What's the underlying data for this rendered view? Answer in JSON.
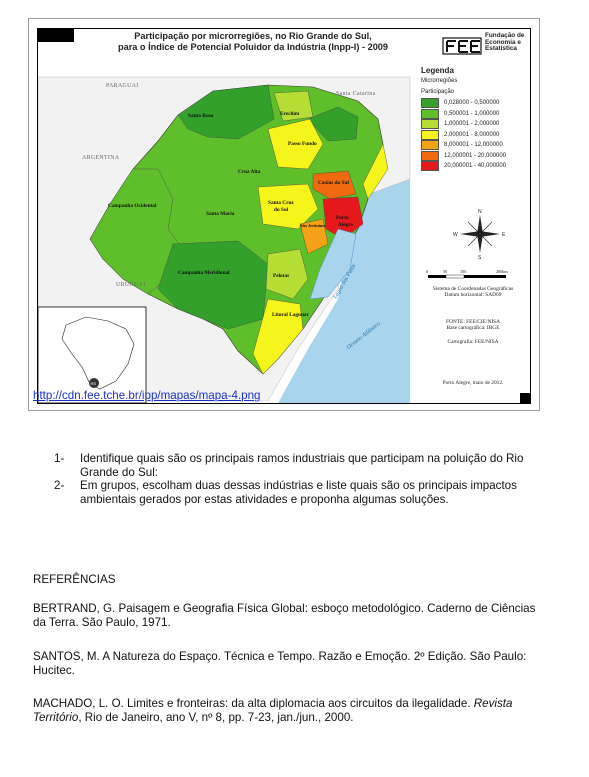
{
  "map": {
    "title_line1": "Participação por microrregiões, no Rio Grande do Sul,",
    "title_line2": "para o Índice de Potencial Poluidor da Indústria (Inpp-I) - 2009",
    "logo_text_line1": "Fundação de",
    "logo_text_line2": "Economia e",
    "logo_text_line3": "Estatística",
    "legend": {
      "title": "Legenda",
      "subtitle": "Microrregiões",
      "sub2": "Participação",
      "items": [
        {
          "label": "0,028000 - 0,500000",
          "color": "#33a02c"
        },
        {
          "label": "0,500001 - 1,000000",
          "color": "#5fbf2a"
        },
        {
          "label": "1,000001 - 2,000000",
          "color": "#b5dd33"
        },
        {
          "label": "2,000001 - 8,000000",
          "color": "#f5f51c"
        },
        {
          "label": "8,000001 - 12,000000",
          "color": "#f5a219"
        },
        {
          "label": "12,000001 - 20,000000",
          "color": "#f06b10"
        },
        {
          "label": "20,000001 - 40,000000",
          "color": "#e5191c"
        }
      ]
    },
    "compass": {
      "n": "N",
      "s": "S",
      "e": "E",
      "w": "W"
    },
    "scale": {
      "ticks": [
        "0",
        "50",
        "100",
        "200km"
      ]
    },
    "projection_line1": "Sistema de Coordenadas Geográficas",
    "projection_line2": "Datum horizontal: SAD69",
    "source_line1": "FONTE: FEE/CIE/NISA",
    "source_line2": "Base cartográfica: IBGE",
    "cartography": "Cartografia: FEE/NISA",
    "date_place": "Porto Alegre, maio de 2012.",
    "countries": {
      "paraguai": "PARAGUAI",
      "argentina": "ARGENTINA",
      "uruguai": "URUGUAI",
      "santa_catarina": "Santa Catarina"
    },
    "water": {
      "lagoa": "Lagoa dos Patos",
      "oceano": "Oceano Atlântico"
    },
    "regions": {
      "santa_rosa": "Santa Rosa",
      "erechim": "Erechim",
      "passo_fundo": "Passo Fundo",
      "cruz_alta": "Cruz Alta",
      "caxias": "Caxias do Sul",
      "campanha_ocidental": "Campanha Ocidental",
      "santa_maria": "Santa Maria",
      "santa_cruz_l1": "Santa Cruz",
      "santa_cruz_l2": "do Sul",
      "sao_jeronimo": "São Jerônimo",
      "porto_alegre_l1": "Porto",
      "porto_alegre_l2": "Alegre",
      "campanha_meridional": "Campanha Meridional",
      "pelotas": "Pelotas",
      "litoral_lagunar": "Litoral Lagunar"
    },
    "inset_badge": "RS"
  },
  "url": "http://cdn.fee.tche.br/ipp/mapas/mapa-4.png",
  "activities": [
    {
      "num": "1-",
      "text": "Identifique quais são os principais ramos industriais que participam na poluição do Rio Grande do Sul:"
    },
    {
      "num": "2-",
      "text": "Em grupos, escolham duas dessas indústrias e liste quais são os principais impactos ambientais gerados por estas atividades e proponha algumas soluções."
    }
  ],
  "references_heading": "REFERÊNCIAS",
  "references": {
    "r1": "BERTRAND, G. Paisagem e Geografia Física Global: esboço metodológico. Caderno de Ciências da Terra. São Paulo, 1971.",
    "r2": "SANTOS, M. A Natureza do Espaço. Técnica e Tempo. Razão e Emoção. 2º Edição. São Paulo: Hucitec.",
    "r3_a": "MACHADO, L. O. Limites e fronteiras: da alta diplomacia aos circuitos da ilegalidade. ",
    "r3_b": "Revista Território",
    "r3_c": ", Rio de Janeiro, ano V, nº 8, pp. 7-23, jan./jun., 2000."
  }
}
